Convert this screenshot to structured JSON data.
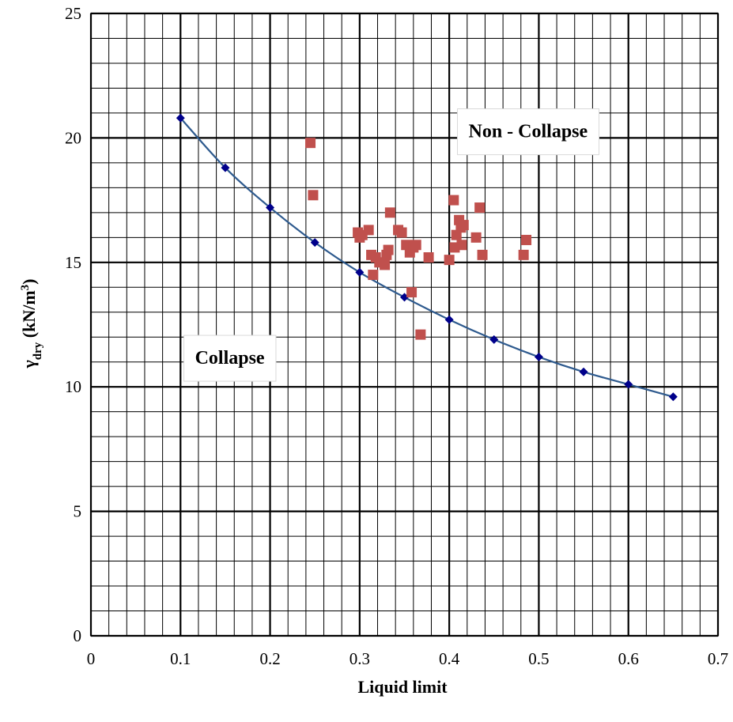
{
  "chart_data": {
    "type": "scatter",
    "title": "",
    "xlabel": "Liquid limit",
    "ylabel": {
      "main": "γ",
      "sub": "dry",
      "unit_prefix": " (kN/m",
      "unit_sup": "3",
      "unit_suffix": ")"
    },
    "xlim": [
      0,
      0.7
    ],
    "ylim": [
      0,
      25
    ],
    "x_ticks": [
      "0",
      "0.1",
      "0.2",
      "0.3",
      "0.4",
      "0.5",
      "0.6",
      "0.7"
    ],
    "y_ticks": [
      "0",
      "5",
      "10",
      "15",
      "20",
      "25"
    ],
    "x_tick_values": [
      0,
      0.1,
      0.2,
      0.3,
      0.4,
      0.5,
      0.6,
      0.7
    ],
    "y_tick_values": [
      0,
      5,
      10,
      15,
      20,
      25
    ],
    "grid": {
      "major": true,
      "minor": true,
      "x_minor_step": 0.02,
      "y_minor_step": 1
    },
    "legend": "none",
    "annotations": [
      {
        "text": "Non - Collapse",
        "x": 0.488,
        "y": 20.2
      },
      {
        "text": "Collapse",
        "x": 0.155,
        "y": 11.1
      }
    ],
    "series": [
      {
        "marker": "diamond",
        "color": "#00008B",
        "trendline": true,
        "trend_color": "#2E5A8E",
        "x": [
          0.1,
          0.15,
          0.2,
          0.25,
          0.3,
          0.35,
          0.4,
          0.45,
          0.5,
          0.55,
          0.6,
          0.65
        ],
        "y": [
          20.8,
          18.8,
          17.2,
          15.8,
          14.6,
          13.6,
          12.7,
          11.9,
          11.2,
          10.6,
          10.1,
          9.6
        ]
      },
      {
        "marker": "square",
        "color": "#C0504D",
        "x": [
          0.245,
          0.248,
          0.298,
          0.3,
          0.303,
          0.31,
          0.313,
          0.315,
          0.318,
          0.322,
          0.328,
          0.33,
          0.332,
          0.334,
          0.343,
          0.347,
          0.352,
          0.356,
          0.358,
          0.36,
          0.363,
          0.368,
          0.377,
          0.4,
          0.405,
          0.406,
          0.408,
          0.411,
          0.413,
          0.414,
          0.416,
          0.43,
          0.434,
          0.437,
          0.483,
          0.486
        ],
        "y": [
          19.8,
          17.7,
          16.2,
          16.0,
          16.1,
          16.3,
          15.3,
          14.5,
          15.2,
          15.0,
          14.9,
          15.3,
          15.5,
          17.0,
          16.3,
          16.2,
          15.7,
          15.4,
          13.8,
          15.6,
          15.7,
          12.1,
          15.2,
          15.1,
          17.5,
          15.6,
          16.1,
          16.7,
          16.4,
          15.7,
          16.5,
          16.0,
          17.2,
          15.3,
          15.3,
          15.9
        ]
      }
    ]
  }
}
